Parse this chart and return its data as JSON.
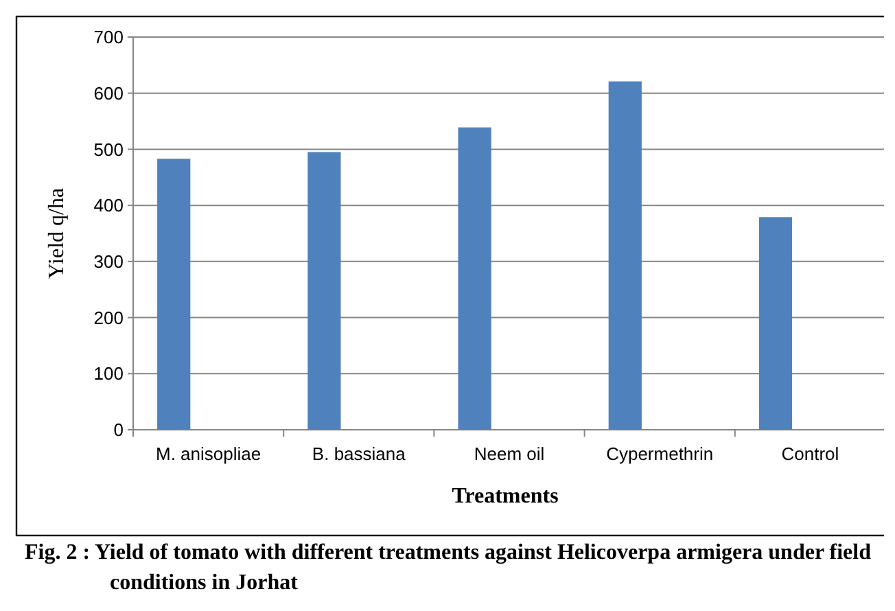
{
  "chart_data": {
    "type": "bar",
    "xlabel": "Treatments",
    "ylabel": "Yield q/ha",
    "categories": [
      "M. anisopliae",
      "B. bassiana",
      "Neem oil",
      "Cypermethrin",
      "Control"
    ],
    "values": [
      483,
      495,
      539,
      621,
      379
    ],
    "color": "#4f81bd",
    "ylim": [
      0,
      700
    ],
    "yticks": [
      0,
      100,
      200,
      300,
      400,
      500,
      600,
      700
    ],
    "grid": "y",
    "annotations": [
      "Fig. 2 : Yield of tomato with different treatments against Helicoverpa armigera under field conditions in Jorhat"
    ]
  }
}
